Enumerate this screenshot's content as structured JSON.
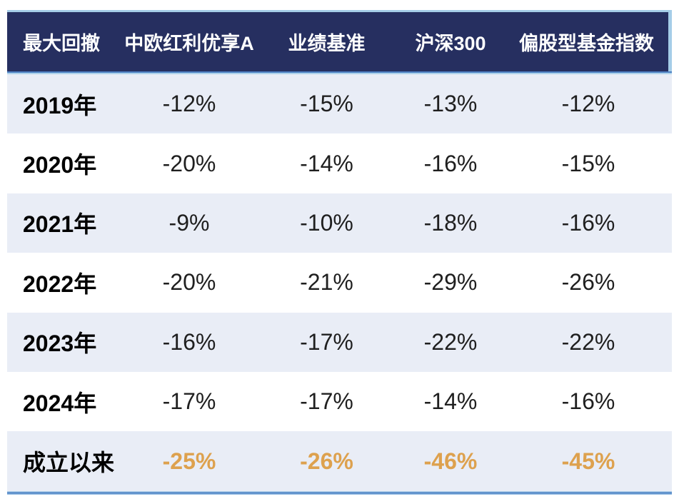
{
  "table": {
    "columns": [
      "最大回撤",
      "中欧红利优享A",
      "业绩基准",
      "沪深300",
      "偏股型基金指数"
    ],
    "rows": [
      {
        "label": "2019年",
        "values": [
          "-12%",
          "-15%",
          "-13%",
          "-12%"
        ],
        "highlight": false
      },
      {
        "label": "2020年",
        "values": [
          "-20%",
          "-14%",
          "-16%",
          "-15%"
        ],
        "highlight": false
      },
      {
        "label": "2021年",
        "values": [
          "-9%",
          "-10%",
          "-18%",
          "-16%"
        ],
        "highlight": false
      },
      {
        "label": "2022年",
        "values": [
          "-20%",
          "-21%",
          "-29%",
          "-26%"
        ],
        "highlight": false
      },
      {
        "label": "2023年",
        "values": [
          "-16%",
          "-17%",
          "-22%",
          "-22%"
        ],
        "highlight": false
      },
      {
        "label": "2024年",
        "values": [
          "-17%",
          "-17%",
          "-14%",
          "-16%"
        ],
        "highlight": false
      },
      {
        "label": "成立以来",
        "values": [
          "-25%",
          "-26%",
          "-46%",
          "-45%"
        ],
        "highlight": true
      }
    ]
  },
  "chart_data": {
    "type": "table",
    "title": "最大回撤",
    "columns": [
      "最大回撤",
      "中欧红利优享A",
      "业绩基准",
      "沪深300",
      "偏股型基金指数"
    ],
    "categories": [
      "2019年",
      "2020年",
      "2021年",
      "2022年",
      "2023年",
      "2024年",
      "成立以来"
    ],
    "series": [
      {
        "name": "中欧红利优享A",
        "values": [
          -12,
          -20,
          -9,
          -20,
          -16,
          -17,
          -25
        ]
      },
      {
        "name": "业绩基准",
        "values": [
          -15,
          -14,
          -10,
          -21,
          -17,
          -17,
          -26
        ]
      },
      {
        "name": "沪深300",
        "values": [
          -13,
          -16,
          -18,
          -29,
          -22,
          -14,
          -46
        ]
      },
      {
        "name": "偏股型基金指数",
        "values": [
          -12,
          -15,
          -16,
          -26,
          -22,
          -16,
          -45
        ]
      }
    ],
    "unit": "%",
    "layout_hints": {
      "highlight_row": "成立以来",
      "alternating_rows": true
    }
  },
  "colors": {
    "header_bg": "#262f60",
    "header_text": "#ffffff",
    "row_alt_bg": "#e9edf6",
    "row_plain_bg": "#ffffff",
    "label_text": "#000000",
    "value_text": "#1f1f1f",
    "highlight_value": "#dda14e",
    "border_light_blue": "#a5cde8",
    "divider_blue": "#4e81c3",
    "bottom_line_blue": "#6394cd"
  }
}
